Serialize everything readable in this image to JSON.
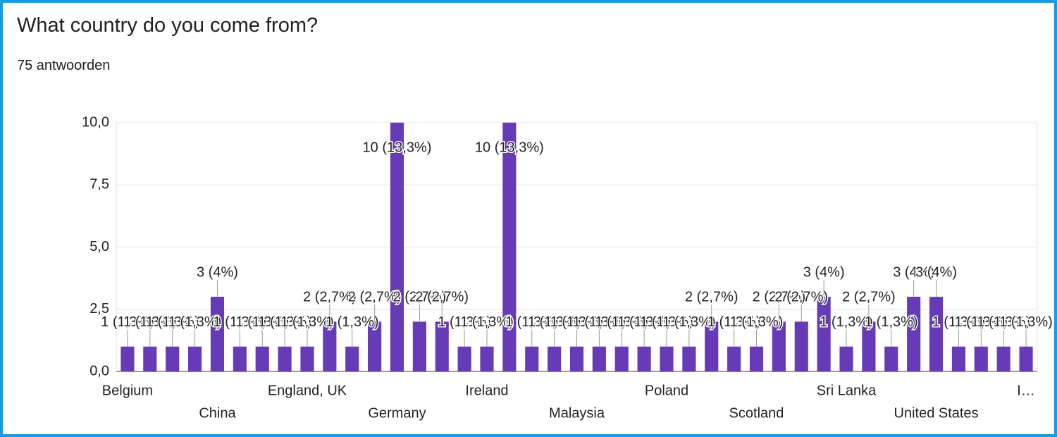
{
  "chart_data": {
    "type": "bar",
    "title": "What country do you come from?",
    "subtitle": "75 antwoorden",
    "categories": [
      "Belgium",
      null,
      null,
      null,
      "China",
      null,
      null,
      null,
      "England, UK",
      null,
      null,
      null,
      "Germany",
      null,
      null,
      null,
      "Ireland",
      null,
      null,
      null,
      "Malaysia",
      null,
      null,
      null,
      "Poland",
      null,
      null,
      null,
      "Scotland",
      null,
      null,
      null,
      "Sri Lanka",
      null,
      null,
      null,
      "United States",
      null,
      null,
      null,
      "I…"
    ],
    "values": [
      1,
      1,
      1,
      1,
      3,
      1,
      1,
      1,
      1,
      2,
      1,
      2,
      10,
      2,
      2,
      1,
      1,
      10,
      1,
      1,
      1,
      1,
      1,
      1,
      1,
      1,
      2,
      1,
      1,
      2,
      2,
      3,
      1,
      2,
      1,
      3,
      3,
      1,
      1,
      1,
      1
    ],
    "value_labels": [
      "1 (1,3%)",
      "1 (1,3%)",
      "1 (1,3%)",
      "1 (1,3%)",
      "3 (4%)",
      "1 (1,3%)",
      "1 (1,3%)",
      "1 (1,3%)",
      "1 (1,3%)",
      "2 (2,7%)",
      "1 (1,3%)",
      "2 (2,7%)",
      "10 (13,3%)",
      "2 (2,7%)",
      "2 (2,7%)",
      "1 (1,3%)",
      "1 (1,3%)",
      "10 (13,3%)",
      "1 (1,3%)",
      "1 (1,3%)",
      "1 (1,3%)",
      "1 (1,3%)",
      "1 (1,3%)",
      "1 (1,3%)",
      "1 (1,3%)",
      "1 (1,3%)",
      "2 (2,7%)",
      "1 (1,3%)",
      "1 (1,3%)",
      "2 (2,7%)",
      "2 (2,7%)",
      "3 (4%)",
      "1 (1,3%)",
      "2 (2,7%)",
      "1 (1,3%)",
      "3 (4%)",
      "3 (4%)",
      "1 (1,3%)",
      "1 (1,3%)",
      "1 (1,3%)",
      "1 (1,3%)"
    ],
    "color": "#673ab7",
    "ylim": [
      0,
      10
    ],
    "yticks": [
      {
        "value": 0,
        "label": "0,0"
      },
      {
        "value": 2.5,
        "label": "2,5"
      },
      {
        "value": 5,
        "label": "5,0"
      },
      {
        "value": 7.5,
        "label": "7,5"
      },
      {
        "value": 10,
        "label": "10,0"
      }
    ],
    "grid": true
  }
}
